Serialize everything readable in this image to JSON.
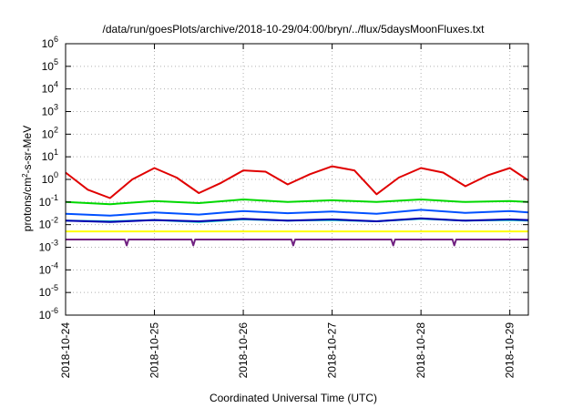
{
  "chart_data": {
    "type": "line",
    "title": "/data/run/goesPlots/archive/2018-10-29/04:00/bryn/../flux/5daysMoonFluxes.txt",
    "xlabel": "Coordinated Universal Time (UTC)",
    "ylabel": "protons/cm²-s-sr-MeV",
    "ylabel_parts": [
      "protons/cm",
      "2",
      "-s-sr-MeV"
    ],
    "y_scale": "log",
    "ylim": [
      1e-06,
      1000000.0
    ],
    "xlim": [
      "2018-10-24T00:00",
      "2018-10-29T05:00"
    ],
    "grid": true,
    "legend": "none",
    "x_ticks": [
      "2018-10-24",
      "2018-10-25",
      "2018-10-26",
      "2018-10-27",
      "2018-10-28",
      "2018-10-29"
    ],
    "y_ticks": [
      {
        "value": 1e-06,
        "base": "10",
        "exp": "-6"
      },
      {
        "value": 1e-05,
        "base": "10",
        "exp": "-5"
      },
      {
        "value": 0.0001,
        "base": "10",
        "exp": "-4"
      },
      {
        "value": 0.001,
        "base": "10",
        "exp": "-3"
      },
      {
        "value": 0.01,
        "base": "10",
        "exp": "-2"
      },
      {
        "value": 0.1,
        "base": "10",
        "exp": "-1"
      },
      {
        "value": 1.0,
        "base": "10",
        "exp": "0"
      },
      {
        "value": 10.0,
        "base": "10",
        "exp": "1"
      },
      {
        "value": 100.0,
        "base": "10",
        "exp": "2"
      },
      {
        "value": 1000.0,
        "base": "10",
        "exp": "3"
      },
      {
        "value": 10000.0,
        "base": "10",
        "exp": "4"
      },
      {
        "value": 100000.0,
        "base": "10",
        "exp": "5"
      },
      {
        "value": 1000000.0,
        "base": "10",
        "exp": "6"
      }
    ],
    "series": [
      {
        "color": "#e00000",
        "x": [
          "2018-10-24T00:00",
          "2018-10-24T06:00",
          "2018-10-24T12:00",
          "2018-10-24T18:00",
          "2018-10-25T00:00",
          "2018-10-25T06:00",
          "2018-10-25T12:00",
          "2018-10-25T18:00",
          "2018-10-26T00:00",
          "2018-10-26T06:00",
          "2018-10-26T12:00",
          "2018-10-26T18:00",
          "2018-10-27T00:00",
          "2018-10-27T06:00",
          "2018-10-27T12:00",
          "2018-10-27T18:00",
          "2018-10-28T00:00",
          "2018-10-28T06:00",
          "2018-10-28T12:00",
          "2018-10-28T18:00",
          "2018-10-29T00:00",
          "2018-10-29T05:00"
        ],
        "y": [
          2.0,
          0.35,
          0.15,
          1.0,
          3.2,
          1.2,
          0.25,
          0.7,
          2.5,
          2.2,
          0.6,
          1.7,
          3.8,
          2.5,
          0.22,
          1.2,
          3.2,
          2.0,
          0.5,
          1.5,
          3.2,
          0.9
        ]
      },
      {
        "color": "#00d800",
        "x": [
          "2018-10-24T00:00",
          "2018-10-24T12:00",
          "2018-10-25T00:00",
          "2018-10-25T12:00",
          "2018-10-26T00:00",
          "2018-10-26T12:00",
          "2018-10-27T00:00",
          "2018-10-27T12:00",
          "2018-10-28T00:00",
          "2018-10-28T12:00",
          "2018-10-29T00:00",
          "2018-10-29T05:00"
        ],
        "y": [
          0.1,
          0.08,
          0.11,
          0.09,
          0.13,
          0.1,
          0.12,
          0.1,
          0.13,
          0.1,
          0.11,
          0.1
        ]
      },
      {
        "color": "#00c0c0",
        "x": [
          "2018-10-24T00:00",
          "2018-10-24T12:00",
          "2018-10-25T00:00",
          "2018-10-25T12:00",
          "2018-10-26T00:00",
          "2018-10-26T12:00",
          "2018-10-27T00:00",
          "2018-10-27T12:00",
          "2018-10-28T00:00",
          "2018-10-28T12:00",
          "2018-10-29T00:00",
          "2018-10-29T05:00"
        ],
        "y": [
          0.015,
          0.014,
          0.016,
          0.013,
          0.017,
          0.015,
          0.016,
          0.014,
          0.018,
          0.015,
          0.016,
          0.015
        ]
      },
      {
        "color": "#0050ff",
        "x": [
          "2018-10-24T00:00",
          "2018-10-24T12:00",
          "2018-10-25T00:00",
          "2018-10-25T12:00",
          "2018-10-26T00:00",
          "2018-10-26T12:00",
          "2018-10-27T00:00",
          "2018-10-27T12:00",
          "2018-10-28T00:00",
          "2018-10-28T12:00",
          "2018-10-29T00:00",
          "2018-10-29T05:00"
        ],
        "y": [
          0.03,
          0.025,
          0.035,
          0.028,
          0.04,
          0.032,
          0.038,
          0.03,
          0.045,
          0.033,
          0.04,
          0.035
        ]
      },
      {
        "color": "#0000b0",
        "x": [
          "2018-10-24T00:00",
          "2018-10-24T12:00",
          "2018-10-25T00:00",
          "2018-10-25T12:00",
          "2018-10-26T00:00",
          "2018-10-26T12:00",
          "2018-10-27T00:00",
          "2018-10-27T12:00",
          "2018-10-28T00:00",
          "2018-10-28T12:00",
          "2018-10-29T00:00",
          "2018-10-29T05:00"
        ],
        "y": [
          0.015,
          0.013,
          0.016,
          0.014,
          0.018,
          0.015,
          0.017,
          0.014,
          0.019,
          0.015,
          0.017,
          0.016
        ]
      },
      {
        "color": "#ffff00",
        "x": [
          "2018-10-24T00:00",
          "2018-10-25T00:00",
          "2018-10-26T00:00",
          "2018-10-27T00:00",
          "2018-10-28T00:00",
          "2018-10-29T00:00",
          "2018-10-29T05:00"
        ],
        "y": [
          0.005,
          0.005,
          0.005,
          0.005,
          0.005,
          0.005,
          0.005
        ]
      },
      {
        "color": "#702080",
        "x": [
          "2018-10-24T00:00",
          "2018-10-24T16:00",
          "2018-10-24T16:30",
          "2018-10-24T17:00",
          "2018-10-25T10:00",
          "2018-10-25T10:30",
          "2018-10-25T11:00",
          "2018-10-26T13:00",
          "2018-10-26T13:30",
          "2018-10-26T14:00",
          "2018-10-27T16:00",
          "2018-10-27T16:30",
          "2018-10-27T17:00",
          "2018-10-28T08:30",
          "2018-10-28T09:00",
          "2018-10-28T09:30",
          "2018-10-29T05:00"
        ],
        "y": [
          0.0022,
          0.0022,
          0.0012,
          0.0022,
          0.0022,
          0.0012,
          0.0022,
          0.0022,
          0.0012,
          0.0022,
          0.0022,
          0.0012,
          0.0022,
          0.0022,
          0.0012,
          0.0022,
          0.0022
        ]
      }
    ]
  }
}
